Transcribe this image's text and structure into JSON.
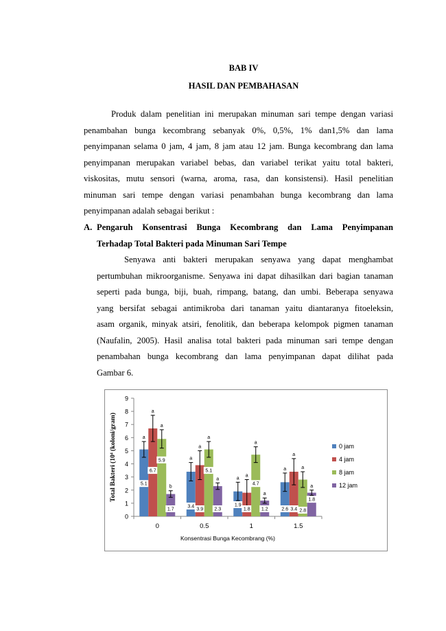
{
  "doc": {
    "chapter": "BAB IV",
    "title": "HASIL DAN PEMBAHASAN",
    "intro_lines": [
      "Produk dalam penelitian ini merupakan minuman sari tempe dengan variasi",
      "penambahan bunga kecombrang sebanyak 0%, 0,5%, 1% dan1,5% dan lama",
      "penyimpanan selama 0 jam, 4 jam, 8 jam atau 12 jam. Bunga kecombrang dan lama",
      "penyimpanan merupakan variabel bebas, dan variabel terikat yaitu total bakteri,",
      "viskositas, mutu sensori (warna, aroma, rasa, dan konsistensi). Hasil penelitian",
      "minuman sari tempe dengan variasi penambahan bunga kecombrang dan lama",
      "penyimpanan adalah sebagai berikut :"
    ],
    "section_label": "A.",
    "section_title_line1": "Pengaruh Konsentrasi Bunga Kecombrang dan Lama Penyimpanan",
    "section_title_line2": "Terhadap Total Bakteri pada Minuman Sari Tempe",
    "body_lines": [
      "Senyawa anti bakteri merupakan senyawa yang dapat menghambat",
      "pertumbuhan mikroorganisme. Senyawa ini dapat dihasilkan dari bagian tanaman",
      "seperti pada bunga, biji, buah, rimpang, batang, dan umbi. Beberapa senyawa",
      "yang bersifat sebagai antimikroba dari tanaman yaitu diantaranya fitoeleksin,",
      "asam organik, minyak atsiri, fenolitik, dan beberapa kelompok pigmen tanaman",
      "(Naufalin, 2005). Hasil analisa total bakteri pada minuman sari tempe dengan",
      "penambahan bunga kecombrang dan lama penyimpanan dapat dilihat pada",
      "Gambar 6."
    ]
  },
  "chart_data": {
    "type": "bar",
    "categories": [
      "0",
      "0.5",
      "1",
      "1.5"
    ],
    "xlabel": "Konsentrasi Bunga Kecombrang (%)",
    "ylabel": "Total Bakteri (10⁴ (koloni/gram)",
    "ylim": [
      0,
      9
    ],
    "yticks": [
      "0",
      "1",
      "2",
      "3",
      "4",
      "5",
      "6",
      "7",
      "8",
      "9"
    ],
    "legend_position": "right",
    "grid": false,
    "series": [
      {
        "name": "0 jam",
        "color": "#4f81bd",
        "values": [
          5.1,
          3.4,
          1.9,
          2.6
        ],
        "errors": [
          0.6,
          0.7,
          0.7,
          0.7
        ],
        "labels": [
          "5.1",
          "3.4",
          "1.9",
          "2.6"
        ],
        "letters": [
          "a",
          "a",
          "a",
          "a"
        ]
      },
      {
        "name": "4 jam",
        "color": "#c0504d",
        "values": [
          6.7,
          3.9,
          1.8,
          3.4
        ],
        "errors": [
          1.0,
          1.1,
          1.0,
          1.0
        ],
        "labels": [
          "6.7",
          "3.9",
          "1.8",
          "3.4"
        ],
        "letters": [
          "a",
          "a",
          "a",
          "a"
        ]
      },
      {
        "name": "8 jam",
        "color": "#9bbb59",
        "values": [
          5.9,
          5.1,
          4.7,
          2.8
        ],
        "errors": [
          0.7,
          0.6,
          0.6,
          0.6
        ],
        "labels": [
          "5.9",
          "5.1",
          "4.7",
          "2.8"
        ],
        "letters": [
          "a",
          "a",
          "a",
          "a"
        ]
      },
      {
        "name": "12 jam",
        "color": "#8064a2",
        "values": [
          1.7,
          2.3,
          1.2,
          1.8
        ],
        "errors": [
          0.25,
          0.25,
          0.2,
          0.2
        ],
        "labels": [
          "1.7",
          "2.3",
          "1.2",
          "1.8"
        ],
        "letters": [
          "b",
          "a",
          "a",
          "a"
        ]
      }
    ]
  }
}
